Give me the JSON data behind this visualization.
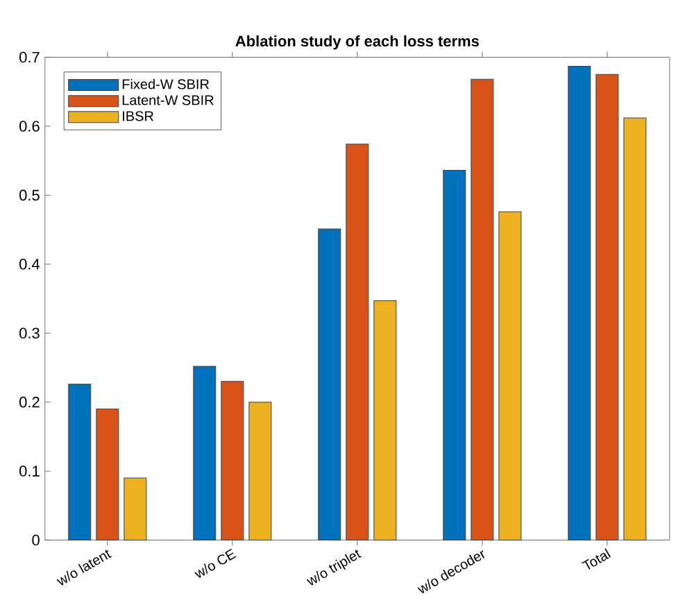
{
  "chart_data": {
    "type": "bar",
    "title": "Ablation study of each loss terms",
    "categories": [
      "w/o latent",
      "w/o CE",
      "w/o triplet",
      "w/o decoder",
      "Total"
    ],
    "series": [
      {
        "name": "Fixed-W SBIR",
        "color": "#0072bd",
        "values": [
          0.226,
          0.252,
          0.451,
          0.536,
          0.687
        ]
      },
      {
        "name": "Latent-W SBIR",
        "color": "#d95319",
        "values": [
          0.19,
          0.23,
          0.574,
          0.668,
          0.675
        ]
      },
      {
        "name": "IBSR",
        "color": "#edb120",
        "values": [
          0.09,
          0.2,
          0.347,
          0.476,
          0.612
        ]
      }
    ],
    "ylim": [
      0,
      0.7
    ],
    "yticks": [
      0,
      0.1,
      0.2,
      0.3,
      0.4,
      0.5,
      0.6,
      0.7
    ],
    "legend": "top left"
  }
}
